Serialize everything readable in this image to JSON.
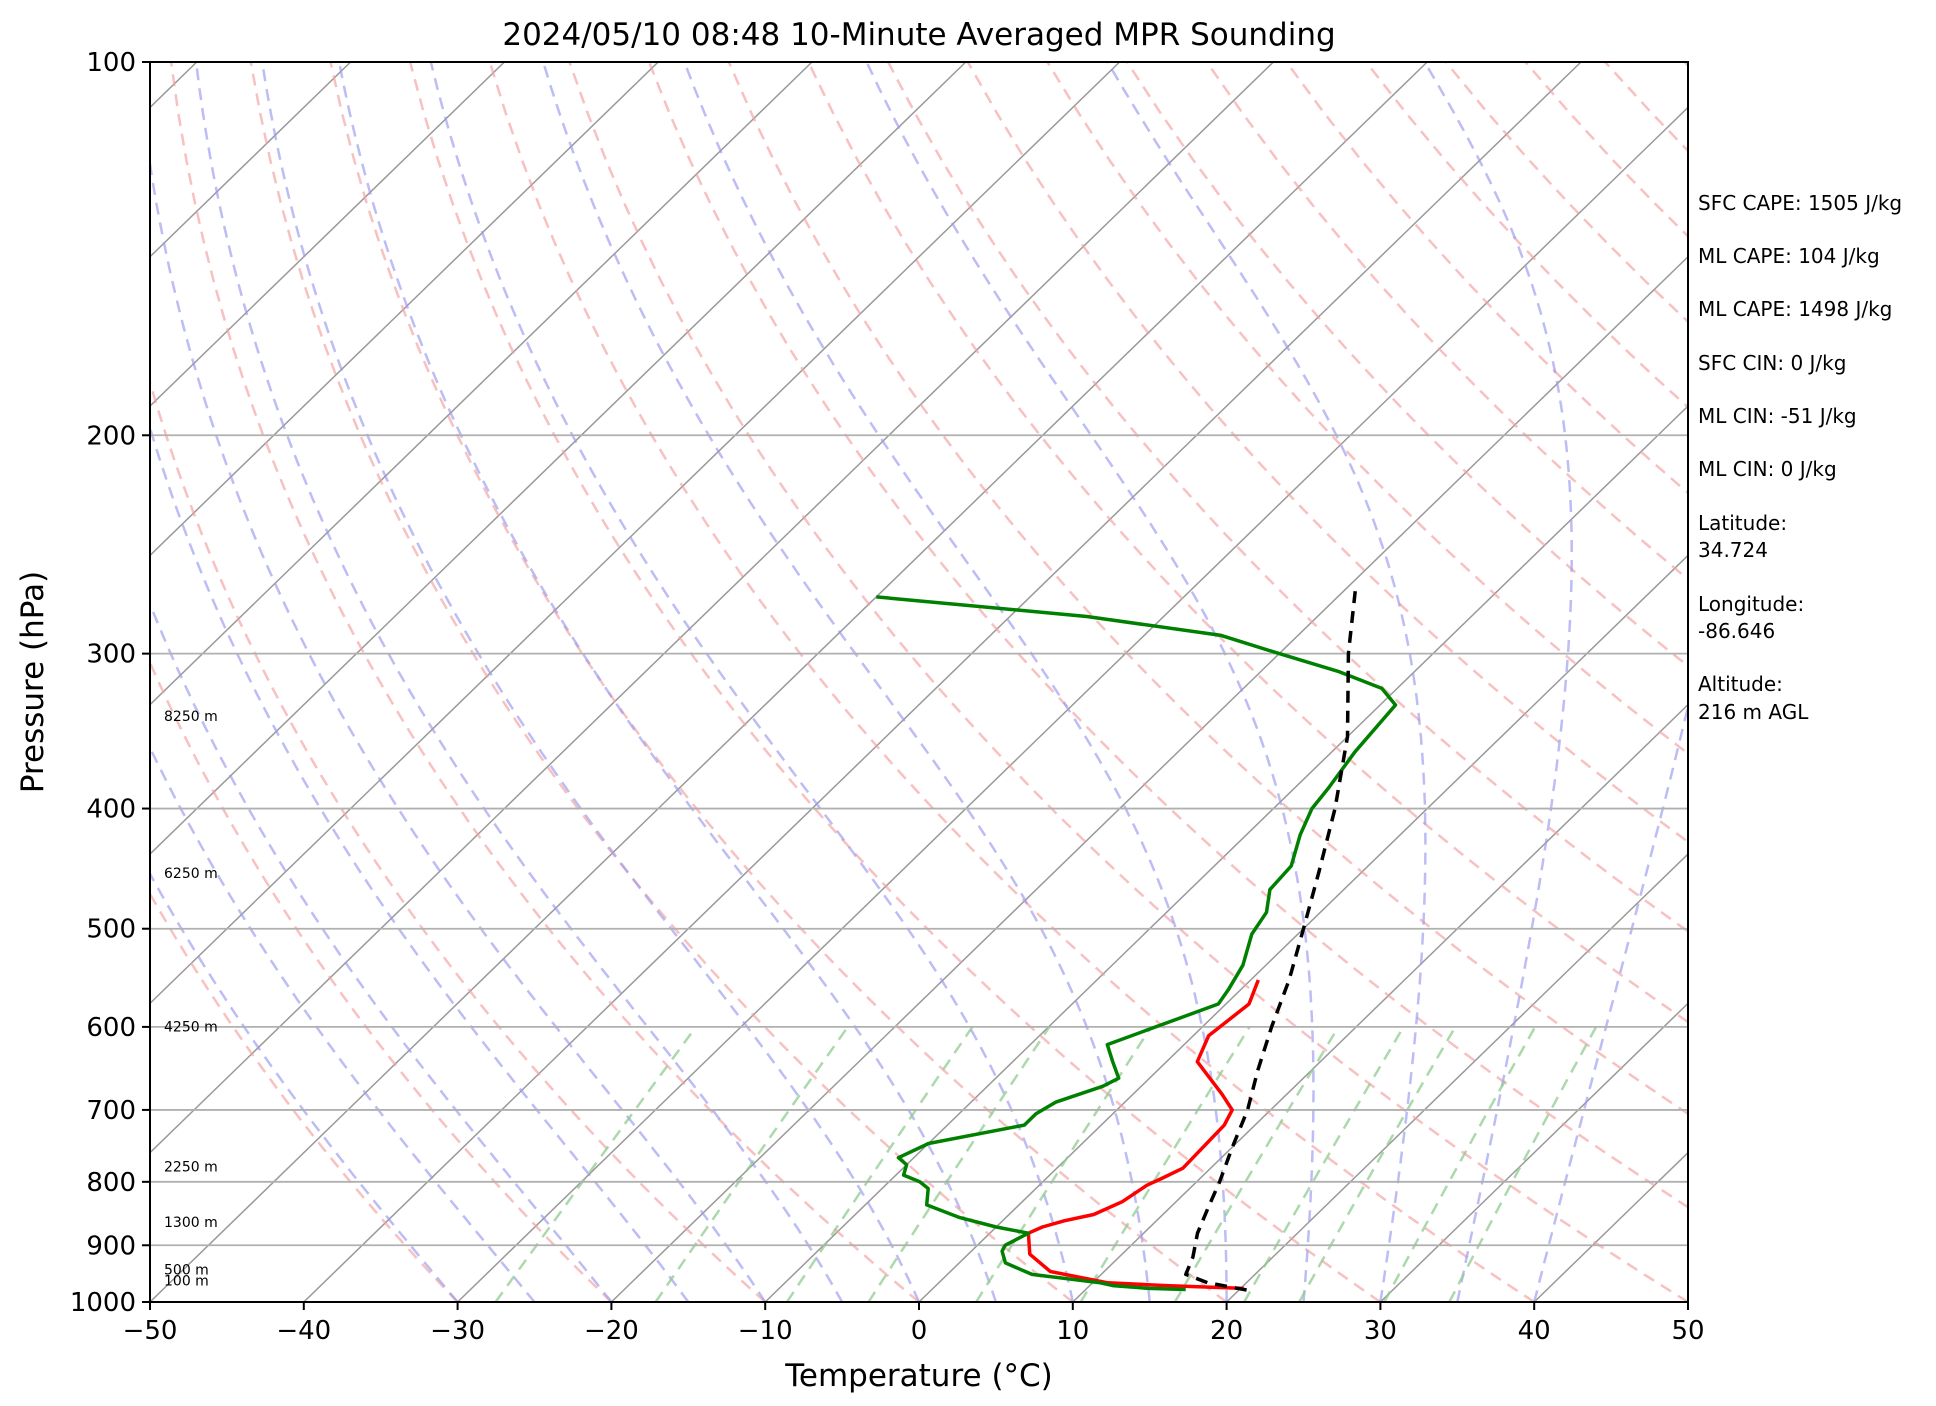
{
  "chart_data": {
    "type": "line",
    "title": "2024/05/10 08:48 10-Minute Averaged MPR Sounding",
    "xlabel": "Temperature (°C)",
    "ylabel": "Pressure (hPa)",
    "xlim": [
      -50,
      50
    ],
    "ylim": [
      1000,
      100
    ],
    "y_scale": "log",
    "skew": "skew-T",
    "grid": true,
    "x_ticks": [
      "−50",
      "−40",
      "−30",
      "−20",
      "−10",
      "0",
      "10",
      "20",
      "30",
      "40",
      "50"
    ],
    "x_tick_values": [
      -50,
      -40,
      -30,
      -20,
      -10,
      0,
      10,
      20,
      30,
      40,
      50
    ],
    "y_ticks": [
      "100",
      "200",
      "300",
      "400",
      "500",
      "600",
      "700",
      "800",
      "900",
      "1000"
    ],
    "y_tick_values": [
      100,
      200,
      300,
      400,
      500,
      600,
      700,
      800,
      900,
      1000
    ],
    "colors": {
      "temperature": "#ff0000",
      "dewpoint": "#008000",
      "parcel": "#000000",
      "dry_adiabats": "#f4a0a0",
      "moist_adiabats": "#9a9af0",
      "mixing_ratio": "#90cc90",
      "isotherms": "#999999"
    },
    "height_labels": [
      {
        "p": 970,
        "label": "100 m"
      },
      {
        "p": 950,
        "label": "500 m"
      },
      {
        "p": 870,
        "label": "1300 m"
      },
      {
        "p": 785,
        "label": "2250 m"
      },
      {
        "p": 605,
        "label": "4250 m"
      },
      {
        "p": 455,
        "label": "6250 m"
      },
      {
        "p": 340,
        "label": "8250 m"
      }
    ],
    "series": [
      {
        "key": "temperature",
        "points": [
          [
            975,
            20.2
          ],
          [
            970,
            15
          ],
          [
            965,
            11
          ],
          [
            945,
            6.5
          ],
          [
            915,
            4
          ],
          [
            880,
            2.5
          ],
          [
            870,
            3
          ],
          [
            860,
            4
          ],
          [
            850,
            5.5
          ],
          [
            830,
            6.5
          ],
          [
            805,
            7
          ],
          [
            795,
            7.5
          ],
          [
            780,
            8.2
          ],
          [
            720,
            8
          ],
          [
            700,
            7.5
          ],
          [
            680,
            5.8
          ],
          [
            640,
            2
          ],
          [
            610,
            1
          ],
          [
            575,
            1.5
          ],
          [
            550,
            0.5
          ]
        ]
      },
      {
        "key": "dewpoint",
        "points": [
          [
            977,
            16.5
          ],
          [
            975,
            14
          ],
          [
            970,
            11.5
          ],
          [
            965,
            10.5
          ],
          [
            950,
            5.5
          ],
          [
            930,
            3
          ],
          [
            910,
            2
          ],
          [
            900,
            1.8
          ],
          [
            880,
            2.5
          ],
          [
            870,
            0
          ],
          [
            855,
            -3
          ],
          [
            835,
            -6
          ],
          [
            810,
            -7
          ],
          [
            800,
            -8
          ],
          [
            790,
            -9.5
          ],
          [
            775,
            -10
          ],
          [
            765,
            -11
          ],
          [
            745,
            -10
          ],
          [
            720,
            -5
          ],
          [
            705,
            -5
          ],
          [
            690,
            -4.5
          ],
          [
            670,
            -2.5
          ],
          [
            660,
            -2
          ],
          [
            640,
            -3.5
          ],
          [
            620,
            -5
          ],
          [
            575,
            -0.5
          ],
          [
            560,
            -0.8
          ],
          [
            535,
            -1.5
          ],
          [
            505,
            -3
          ],
          [
            485,
            -3.5
          ],
          [
            465,
            -4.8
          ],
          [
            445,
            -5
          ],
          [
            420,
            -6.5
          ],
          [
            400,
            -7.5
          ],
          [
            385,
            -7.8
          ],
          [
            360,
            -8.5
          ],
          [
            330,
            -9
          ],
          [
            320,
            -11
          ],
          [
            310,
            -15
          ],
          [
            300,
            -20
          ],
          [
            290,
            -25
          ],
          [
            280,
            -35
          ],
          [
            270,
            -50
          ]
        ]
      },
      {
        "key": "parcel",
        "dashed": true,
        "points": [
          [
            978,
            20.5
          ],
          [
            965,
            17.5
          ],
          [
            950,
            15.5
          ],
          [
            920,
            14.8
          ],
          [
            880,
            13.5
          ],
          [
            840,
            12.5
          ],
          [
            800,
            11.5
          ],
          [
            750,
            10
          ],
          [
            700,
            8.5
          ],
          [
            650,
            6.5
          ],
          [
            600,
            4.5
          ],
          [
            550,
            2.5
          ],
          [
            500,
            0
          ],
          [
            450,
            -2.8
          ],
          [
            400,
            -6
          ],
          [
            350,
            -10
          ],
          [
            300,
            -15.5
          ],
          [
            265,
            -19.5
          ]
        ]
      }
    ],
    "annotations": [
      "SFC CAPE: 1505 J/kg",
      "ML CAPE: 104 J/kg",
      "ML CAPE: 1498 J/kg",
      "SFC CIN: 0 J/kg",
      "ML CIN: -51 J/kg",
      "ML CIN: 0 J/kg",
      "Latitude:",
      "34.724",
      "Longitude:",
      "-86.646",
      "Altitude:",
      "216 m AGL"
    ]
  }
}
